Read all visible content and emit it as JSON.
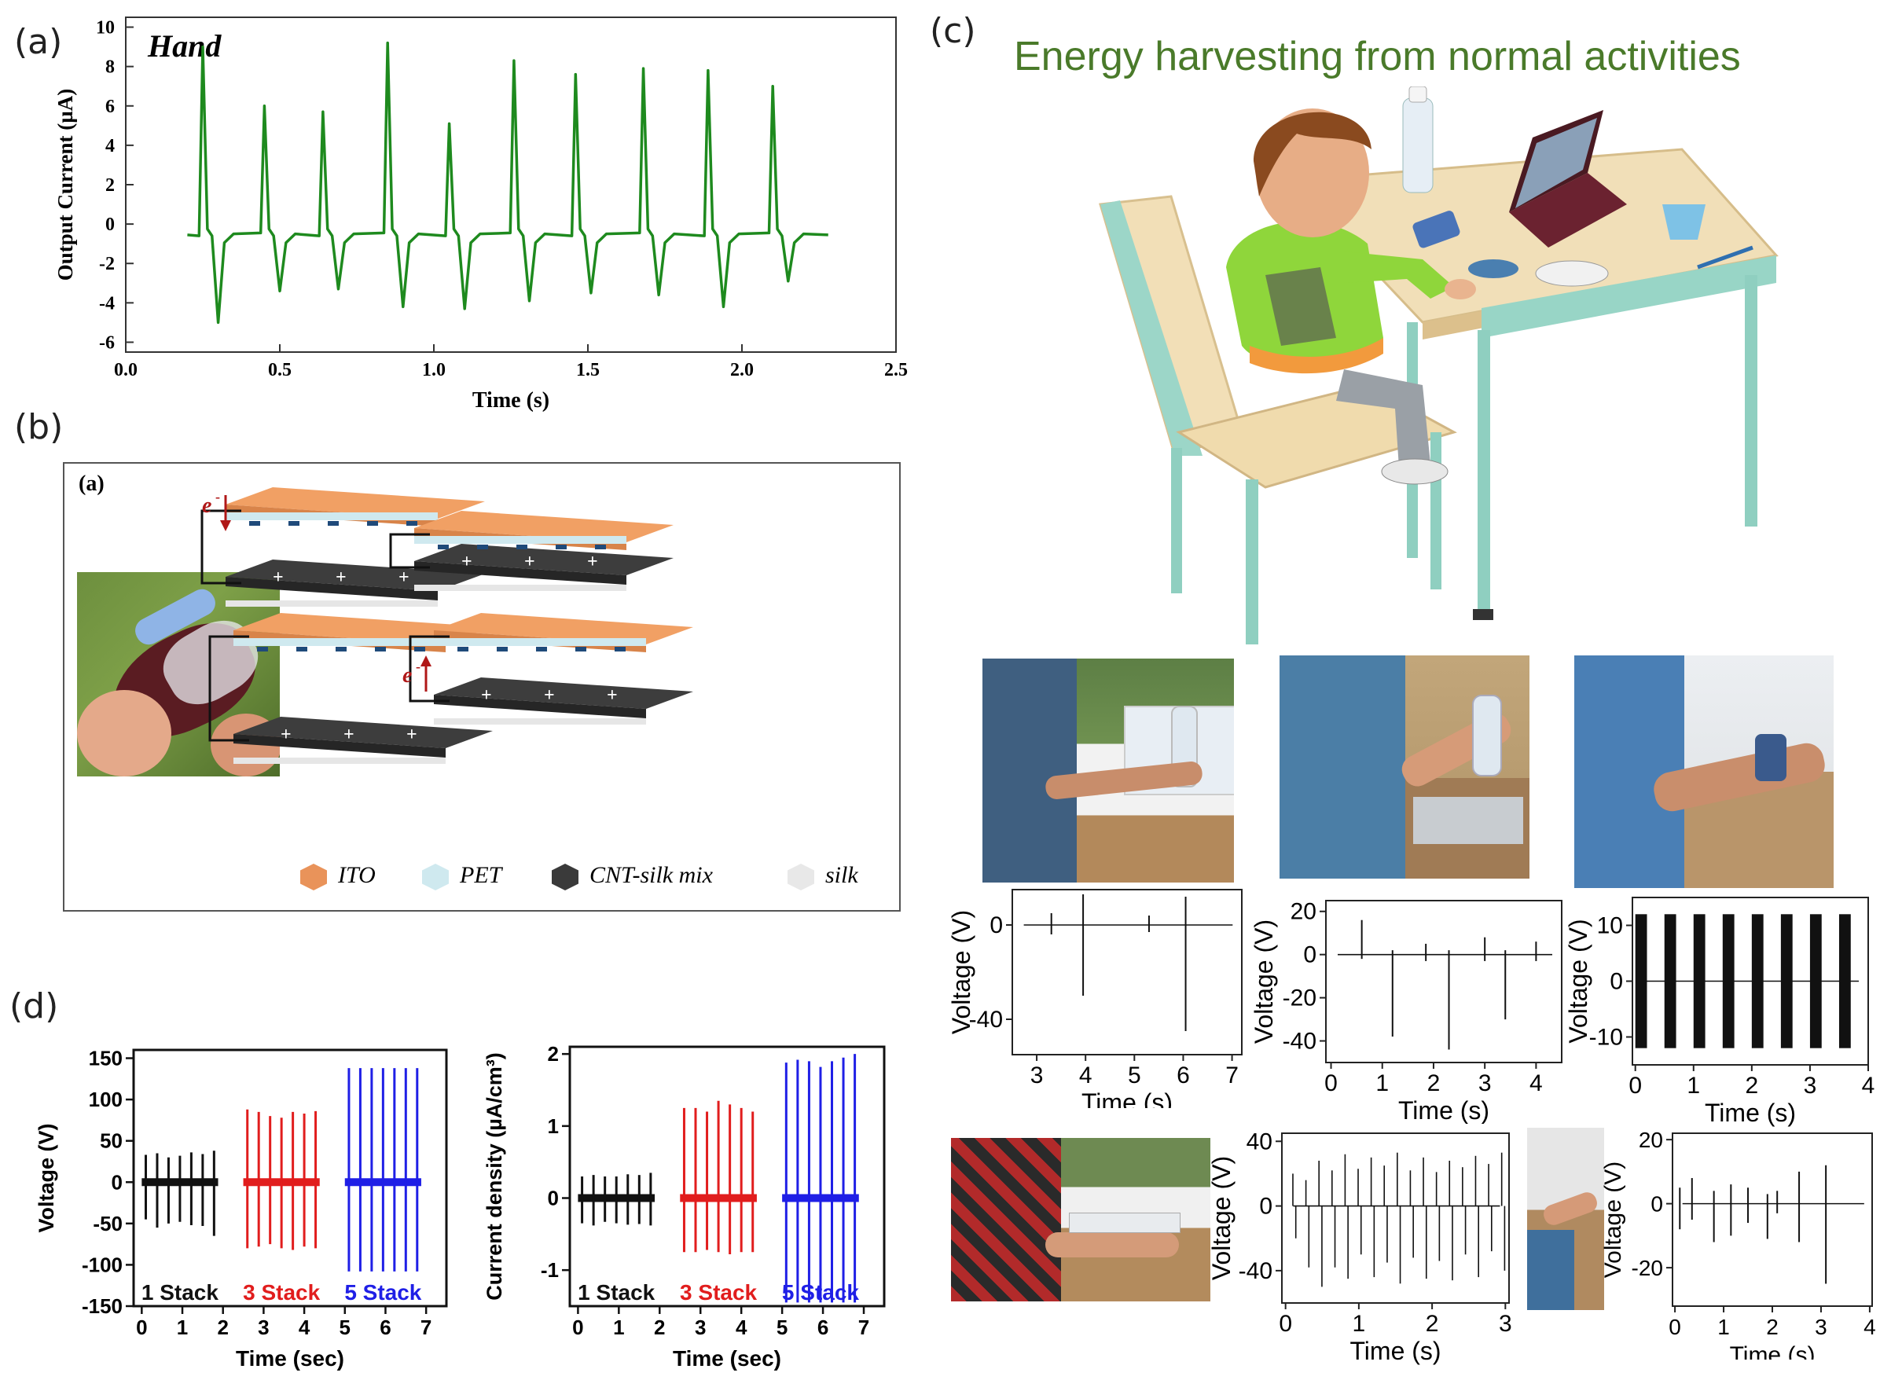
{
  "labels": {
    "a": "(a)",
    "b": "(b)",
    "c": "(c)",
    "d": "(d)"
  },
  "panel_a": {
    "chart_data": {
      "type": "line",
      "title": "Hand",
      "xlabel": "Time (s)",
      "ylabel": "Output Current (µA)",
      "xlim": [
        0.0,
        2.5
      ],
      "ylim": [
        -6.5,
        10.5
      ],
      "xticks": [
        "0.0",
        "0.5",
        "1.0",
        "1.5",
        "2.0",
        "2.5"
      ],
      "yticks": [
        "-6",
        "-4",
        "-2",
        "0",
        "2",
        "4",
        "6",
        "8",
        "10"
      ],
      "baseline": -0.55,
      "x_start": 0.2,
      "x_end": 2.28,
      "color": "#1e8a1e",
      "peaks": [
        {
          "t": 0.25,
          "pos": 9.0,
          "neg": -5.0
        },
        {
          "t": 0.45,
          "pos": 6.0,
          "neg": -3.4
        },
        {
          "t": 0.64,
          "pos": 5.7,
          "neg": -3.3
        },
        {
          "t": 0.85,
          "pos": 9.2,
          "neg": -4.2
        },
        {
          "t": 1.05,
          "pos": 5.1,
          "neg": -4.3
        },
        {
          "t": 1.26,
          "pos": 8.3,
          "neg": -3.9
        },
        {
          "t": 1.46,
          "pos": 7.6,
          "neg": -3.5
        },
        {
          "t": 1.68,
          "pos": 7.9,
          "neg": -3.6
        },
        {
          "t": 1.89,
          "pos": 7.8,
          "neg": -4.2
        },
        {
          "t": 2.1,
          "pos": 7.0,
          "neg": -2.9
        }
      ]
    }
  },
  "panel_b": {
    "sub_label": "(a)",
    "electron_label": "e",
    "electron_sup": "-",
    "legend": [
      {
        "name": "ITO",
        "color": "#e9935a"
      },
      {
        "name": "PET",
        "color": "#cfe9ef"
      },
      {
        "name": "CNT-silk mix",
        "color": "#3a3a3a"
      },
      {
        "name": "silk",
        "color": "#e8e8e8"
      }
    ]
  },
  "panel_c": {
    "title": "Energy harvesting from normal activities",
    "title_color": "#4a7a2a",
    "charts": [
      {
        "type": "line",
        "ylabel": "Voltage (V)",
        "xlabel": "Time (s)",
        "xlim": [
          2.5,
          7.2
        ],
        "ylim": [
          -55,
          15
        ],
        "xticks": [
          "3",
          "4",
          "5",
          "6",
          "7"
        ],
        "yticks": [
          "0",
          "-40"
        ],
        "events": [
          {
            "t": 3.3,
            "pos": 5,
            "neg": -4
          },
          {
            "t": 3.95,
            "pos": 13,
            "neg": -30
          },
          {
            "t": 5.3,
            "pos": 4,
            "neg": -3
          },
          {
            "t": 6.05,
            "pos": 12,
            "neg": -45
          }
        ]
      },
      {
        "type": "line",
        "ylabel": "Voltage (V)",
        "xlabel": "Time (s)",
        "xlim": [
          -0.1,
          4.5
        ],
        "ylim": [
          -50,
          25
        ],
        "xticks": [
          "0",
          "1",
          "2",
          "3",
          "4"
        ],
        "yticks": [
          "20",
          "0",
          "-20",
          "-40"
        ],
        "events": [
          {
            "t": 0.6,
            "pos": 16,
            "neg": -2
          },
          {
            "t": 1.2,
            "pos": 2,
            "neg": -38
          },
          {
            "t": 1.85,
            "pos": 5,
            "neg": -3
          },
          {
            "t": 2.3,
            "pos": 2,
            "neg": -44
          },
          {
            "t": 3.0,
            "pos": 8,
            "neg": -3
          },
          {
            "t": 3.4,
            "pos": 2,
            "neg": -30
          },
          {
            "t": 4.0,
            "pos": 6,
            "neg": -3
          }
        ]
      },
      {
        "type": "line",
        "ylabel": "Voltage (V)",
        "xlabel": "Time (s)",
        "xlim": [
          -0.05,
          4.0
        ],
        "ylim": [
          -15,
          15
        ],
        "xticks": [
          "0",
          "1",
          "2",
          "3",
          "4"
        ],
        "yticks": [
          "10",
          "0",
          "-10"
        ],
        "bursts": [
          0.0,
          0.5,
          1.0,
          1.5,
          2.0,
          2.5,
          3.0,
          3.5
        ],
        "amp": 12
      },
      {
        "type": "line",
        "ylabel": "Voltage (V)",
        "xlabel": "Time (s)",
        "xlim": [
          -0.05,
          3.05
        ],
        "ylim": [
          -60,
          45
        ],
        "xticks": [
          "0",
          "1",
          "2",
          "3"
        ],
        "yticks": [
          "40",
          "0",
          "-40"
        ],
        "pos_vals": [
          20,
          16,
          28,
          22,
          32,
          23,
          30,
          25,
          33,
          22,
          30,
          21,
          28,
          24,
          31,
          26,
          33
        ],
        "neg_vals": [
          -20,
          -38,
          -50,
          -38,
          -45,
          -30,
          -44,
          -35,
          -48,
          -32,
          -45,
          -34,
          -46,
          -30,
          -44,
          -28,
          -40
        ]
      },
      {
        "type": "line",
        "ylabel": "Voltage (V)",
        "xlabel": "Time (s)",
        "xlim": [
          -0.05,
          4.05
        ],
        "ylim": [
          -32,
          22
        ],
        "xticks": [
          "0",
          "1",
          "2",
          "3",
          "4"
        ],
        "yticks": [
          "20",
          "0",
          "-20"
        ],
        "events": [
          {
            "t": 0.1,
            "pos": 5,
            "neg": -8
          },
          {
            "t": 0.35,
            "pos": 8,
            "neg": -5
          },
          {
            "t": 0.8,
            "pos": 4,
            "neg": -12
          },
          {
            "t": 1.15,
            "pos": 6,
            "neg": -10
          },
          {
            "t": 1.5,
            "pos": 5,
            "neg": -6
          },
          {
            "t": 1.9,
            "pos": 3,
            "neg": -11
          },
          {
            "t": 2.1,
            "pos": 4,
            "neg": -3
          },
          {
            "t": 2.55,
            "pos": 10,
            "neg": -12
          },
          {
            "t": 3.1,
            "pos": 12,
            "neg": -25
          }
        ]
      }
    ]
  },
  "panel_d": {
    "chart_data": [
      {
        "type": "line",
        "ylabel": "Voltage (V)",
        "xlabel": "Time (sec)",
        "xlim": [
          -0.2,
          7.5
        ],
        "ylim": [
          -150,
          160
        ],
        "xticks": [
          "0",
          "1",
          "2",
          "3",
          "4",
          "5",
          "6",
          "7"
        ],
        "yticks": [
          "150",
          "100",
          "50",
          "0",
          "-50",
          "-100",
          "-150"
        ],
        "series": [
          {
            "name": "1 Stack",
            "color": "#111111",
            "times": [
              0.1,
              0.38,
              0.66,
              0.94,
              1.22,
              1.5,
              1.78
            ],
            "pos": [
              33,
              35,
              30,
              32,
              36,
              34,
              38
            ],
            "neg": [
              -45,
              -55,
              -50,
              -48,
              -52,
              -53,
              -65
            ]
          },
          {
            "name": "3 Stack",
            "color": "#e11d1d",
            "times": [
              2.6,
              2.88,
              3.16,
              3.44,
              3.72,
              4.0,
              4.28
            ],
            "pos": [
              88,
              85,
              80,
              78,
              85,
              83,
              86
            ],
            "neg": [
              -80,
              -78,
              -75,
              -80,
              -82,
              -78,
              -80
            ]
          },
          {
            "name": "5 Stack",
            "color": "#1f1fe6",
            "times": [
              5.1,
              5.38,
              5.66,
              5.94,
              6.22,
              6.5,
              6.78
            ],
            "pos": [
              138,
              138,
              138,
              138,
              138,
              138,
              138
            ],
            "neg": [
              -108,
              -108,
              -108,
              -108,
              -108,
              -108,
              -108
            ]
          }
        ]
      },
      {
        "type": "line",
        "ylabel": "Current density (µA/cm³)",
        "xlabel": "Time (sec)",
        "xlim": [
          -0.2,
          7.5
        ],
        "ylim": [
          -1.5,
          2.1
        ],
        "xticks": [
          "0",
          "1",
          "2",
          "3",
          "4",
          "5",
          "6",
          "7"
        ],
        "yticks": [
          "2",
          "1",
          "0",
          "-1"
        ],
        "series": [
          {
            "name": "1 Stack",
            "color": "#111111",
            "times": [
              0.1,
              0.38,
              0.66,
              0.94,
              1.22,
              1.5,
              1.78
            ],
            "pos": [
              0.3,
              0.32,
              0.3,
              0.3,
              0.33,
              0.32,
              0.35
            ],
            "neg": [
              -0.35,
              -0.38,
              -0.33,
              -0.35,
              -0.37,
              -0.36,
              -0.38
            ]
          },
          {
            "name": "3 Stack",
            "color": "#e11d1d",
            "times": [
              2.6,
              2.88,
              3.16,
              3.44,
              3.72,
              4.0,
              4.28
            ],
            "pos": [
              1.25,
              1.25,
              1.2,
              1.35,
              1.3,
              1.25,
              1.2
            ],
            "neg": [
              -0.75,
              -0.75,
              -0.72,
              -0.75,
              -0.78,
              -0.75,
              -0.75
            ]
          },
          {
            "name": "5 Stack",
            "color": "#1f1fe6",
            "times": [
              5.1,
              5.38,
              5.66,
              5.94,
              6.22,
              6.5,
              6.78
            ],
            "pos": [
              1.88,
              1.92,
              1.9,
              1.82,
              1.9,
              1.95,
              2.0
            ],
            "neg": [
              -1.45,
              -1.45,
              -1.45,
              -1.45,
              -1.45,
              -1.45,
              -1.45
            ]
          }
        ]
      }
    ]
  }
}
